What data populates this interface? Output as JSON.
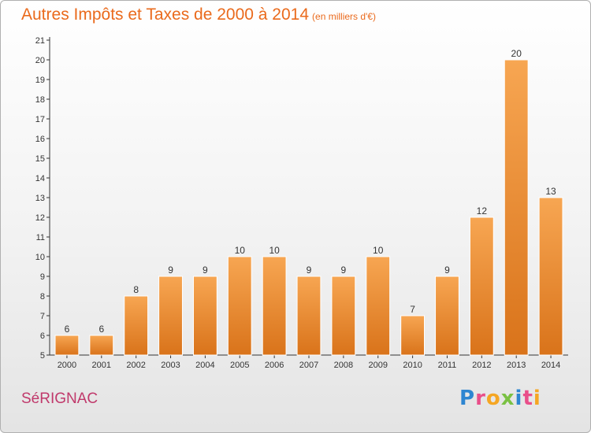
{
  "header": {
    "title": "Autres Impôts et Taxes de 2000 à 2014",
    "subtitle": "(en milliers d'€)"
  },
  "footer": {
    "city": "SéRIGNAC",
    "logo": {
      "letters": [
        "P",
        "r",
        "o",
        "x",
        "i",
        "t",
        "i"
      ],
      "colors": [
        "#2e86d1",
        "#e94f8a",
        "#f5a623",
        "#7ac143",
        "#2e86d1",
        "#e94f8a",
        "#f5a623"
      ]
    }
  },
  "chart_data": {
    "type": "bar",
    "title": "Autres Impôts et Taxes de 2000 à 2014",
    "subtitle": "(en milliers d'€)",
    "categories": [
      "2000",
      "2001",
      "2002",
      "2003",
      "2004",
      "2005",
      "2006",
      "2007",
      "2008",
      "2009",
      "2010",
      "2011",
      "2012",
      "2013",
      "2014"
    ],
    "values": [
      6,
      6,
      8,
      9,
      9,
      10,
      10,
      9,
      9,
      10,
      7,
      9,
      12,
      20,
      13
    ],
    "ylim": [
      5,
      21
    ],
    "yticks": [
      5,
      6,
      7,
      8,
      9,
      10,
      11,
      12,
      13,
      14,
      15,
      16,
      17,
      18,
      19,
      20,
      21
    ],
    "grid": false,
    "legend": "none",
    "colors": {
      "bar_light": "#f7a652",
      "bar_dark": "#d9731a",
      "title": "#ea6a1c",
      "city": "#c0396b"
    }
  }
}
